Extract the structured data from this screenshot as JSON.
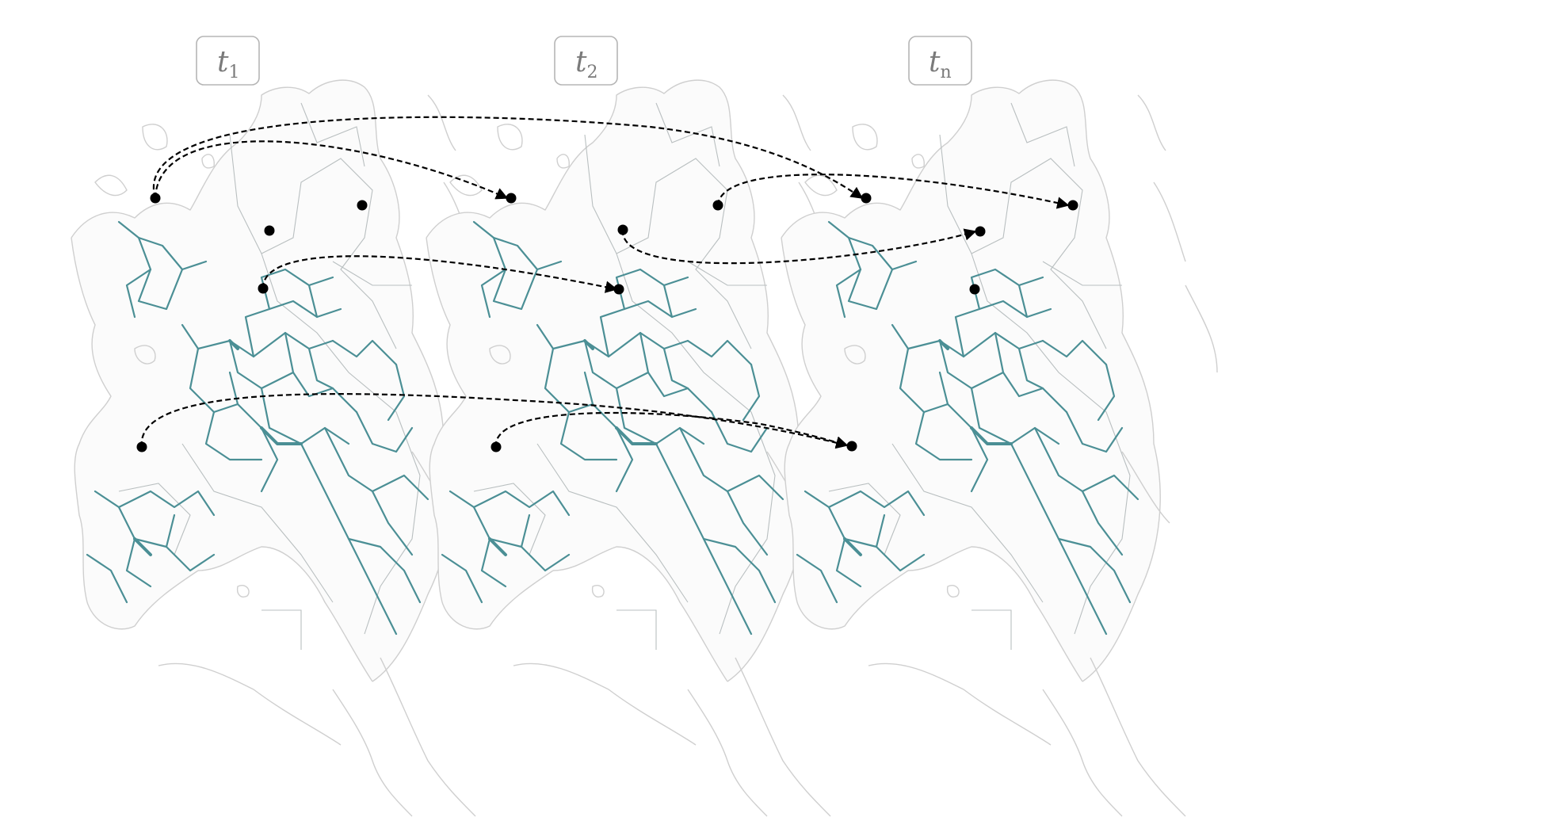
{
  "panels": [
    {
      "label": "t",
      "sub": "1"
    },
    {
      "label": "t",
      "sub": "2"
    },
    {
      "label": "t",
      "sub": "n"
    }
  ],
  "colors": {
    "network": "#4b8f95",
    "coastline": "#cfcfcf",
    "label_text": "#7a7a7a",
    "label_border": "#b5b5b5",
    "arrow": "#000000"
  }
}
